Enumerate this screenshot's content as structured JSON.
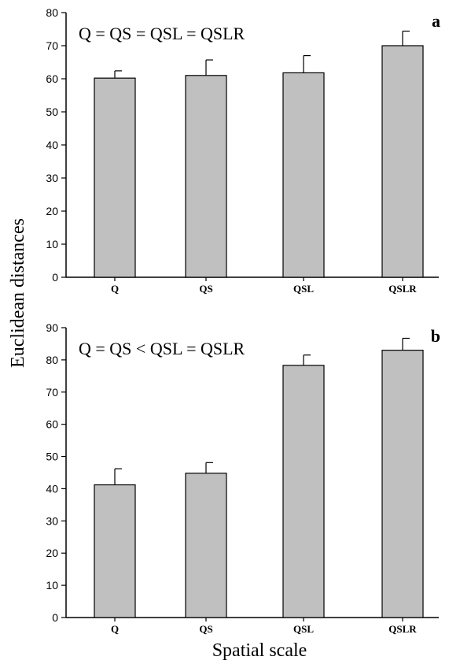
{
  "chart_data": [
    {
      "type": "bar",
      "panel_label": "a",
      "annotation": "Q = QS = QSL = QSLR",
      "categories": [
        "Q",
        "QS",
        "QSL",
        "QSLR"
      ],
      "values": [
        60.2,
        61.0,
        61.8,
        70.0
      ],
      "errors": [
        2.2,
        4.7,
        5.2,
        4.4
      ],
      "ylim": [
        0,
        80
      ],
      "yticks": [
        0,
        10,
        20,
        30,
        40,
        50,
        60,
        70,
        80
      ],
      "bar_color": "#c0c0c0"
    },
    {
      "type": "bar",
      "panel_label": "b",
      "annotation": "Q = QS < QSL = QSLR",
      "categories": [
        "Q",
        "QS",
        "QSL",
        "QSLR"
      ],
      "values": [
        41.2,
        44.8,
        78.3,
        83.0
      ],
      "errors": [
        5.0,
        3.3,
        3.2,
        3.7
      ],
      "ylim": [
        0,
        90
      ],
      "yticks": [
        0,
        10,
        20,
        30,
        40,
        50,
        60,
        70,
        80,
        90
      ],
      "bar_color": "#c0c0c0"
    }
  ],
  "ylabel": "Euclidean distances",
  "xlabel": "Spatial scale"
}
